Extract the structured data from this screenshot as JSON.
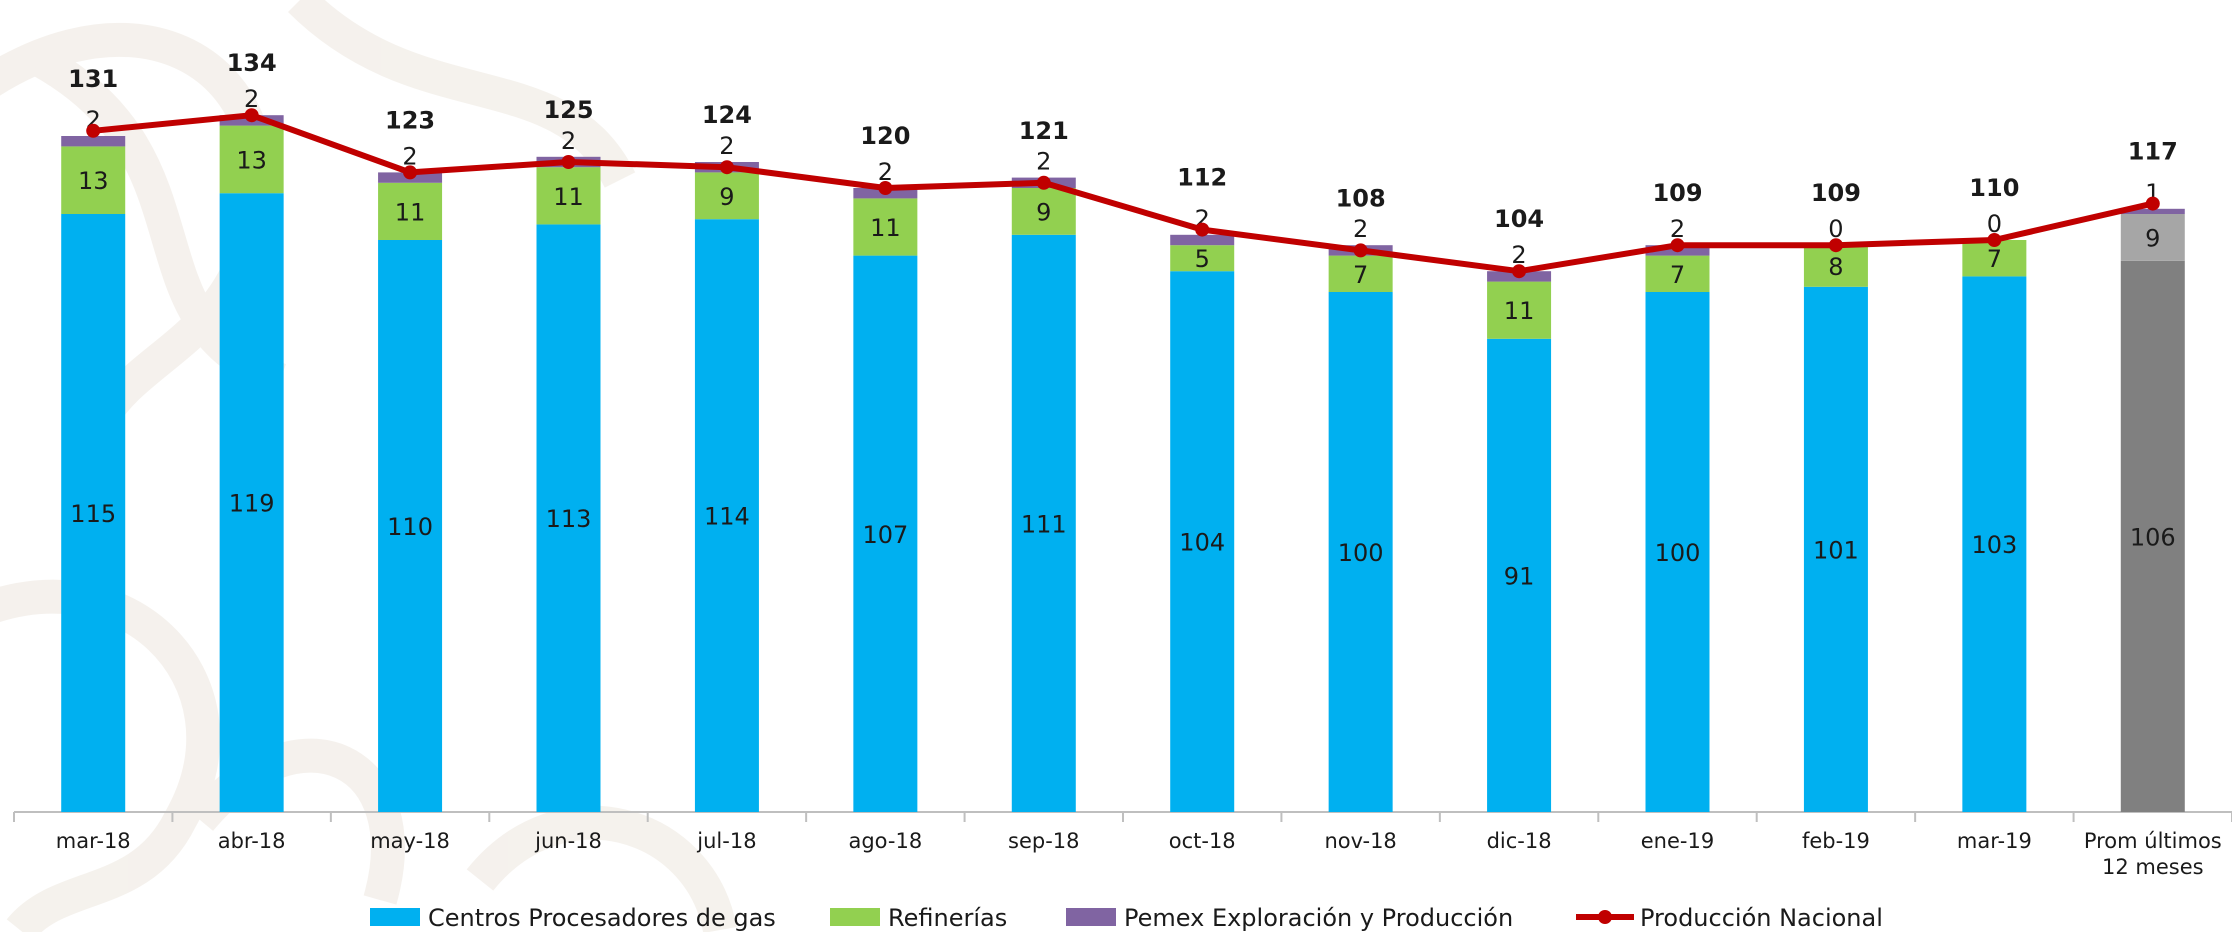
{
  "chart_data": {
    "type": "bar",
    "stacked": true,
    "categories": [
      "mar-18",
      "abr-18",
      "may-18",
      "jun-18",
      "jul-18",
      "ago-18",
      "sep-18",
      "oct-18",
      "nov-18",
      "dic-18",
      "ene-19",
      "feb-19",
      "mar-19",
      "Prom últimos 12 meses"
    ],
    "series": [
      {
        "name": "Centros Procesadores de gas",
        "color": "#00B0F0",
        "values": [
          115,
          119,
          110,
          113,
          114,
          107,
          111,
          104,
          100,
          91,
          100,
          101,
          103,
          106
        ]
      },
      {
        "name": "Refinerías",
        "color": "#92D050",
        "values": [
          13,
          13,
          11,
          11,
          9,
          11,
          9,
          5,
          7,
          11,
          7,
          8,
          7,
          9
        ]
      },
      {
        "name": "Pemex Exploración y Producción",
        "color": "#8064A2",
        "values": [
          2,
          2,
          2,
          2,
          2,
          2,
          2,
          2,
          2,
          2,
          2,
          0,
          0,
          1
        ]
      }
    ],
    "line_series": {
      "name": "Producción Nacional",
      "color": "#C00000",
      "values": [
        131,
        134,
        123,
        125,
        124,
        120,
        121,
        112,
        108,
        104,
        109,
        109,
        110,
        117
      ]
    },
    "totals": [
      131,
      134,
      123,
      125,
      124,
      120,
      121,
      112,
      108,
      104,
      109,
      109,
      110,
      117
    ],
    "average_bar_colors": {
      "Centros Procesadores de gas": "#808080",
      "Refinerías": "#A6A6A6",
      "Pemex Exploración y Producción": "#8064A2"
    },
    "ylim": [
      0,
      140
    ],
    "grid": false,
    "legend_position": "bottom",
    "title": "",
    "xlabel": "",
    "ylabel": ""
  }
}
